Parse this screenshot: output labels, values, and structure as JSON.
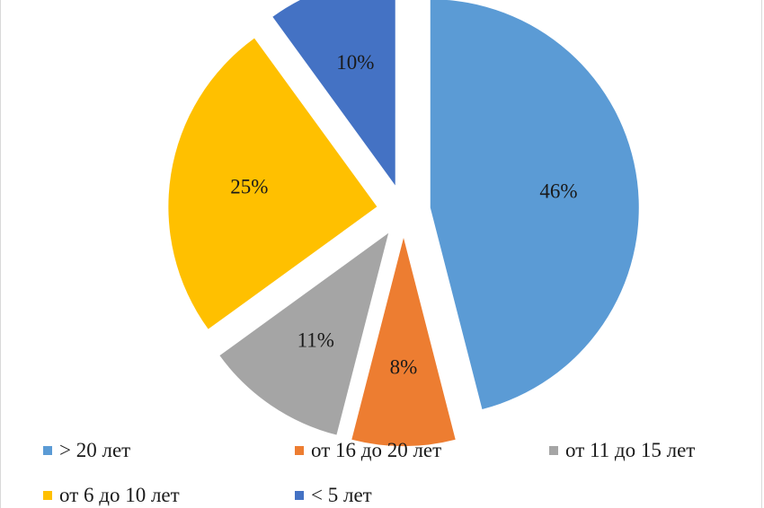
{
  "chart_data": {
    "type": "pie",
    "style": "exploded",
    "legend_placement": "bottom",
    "slices": [
      {
        "label": "> 20 лет",
        "value": 46,
        "value_label": "46%",
        "color": "#5B9BD5"
      },
      {
        "label": "от 16 до 20 лет",
        "value": 8,
        "value_label": "8%",
        "color": "#ED7D31"
      },
      {
        "label": "от 11 до 15 лет",
        "value": 11,
        "value_label": "11%",
        "color": "#A5A5A5"
      },
      {
        "label": "от 6 до 10 лет",
        "value": 25,
        "value_label": "25%",
        "color": "#FFC000"
      },
      {
        "label": "< 5 лет",
        "value": 10,
        "value_label": "10%",
        "color": "#4472C4"
      }
    ]
  }
}
